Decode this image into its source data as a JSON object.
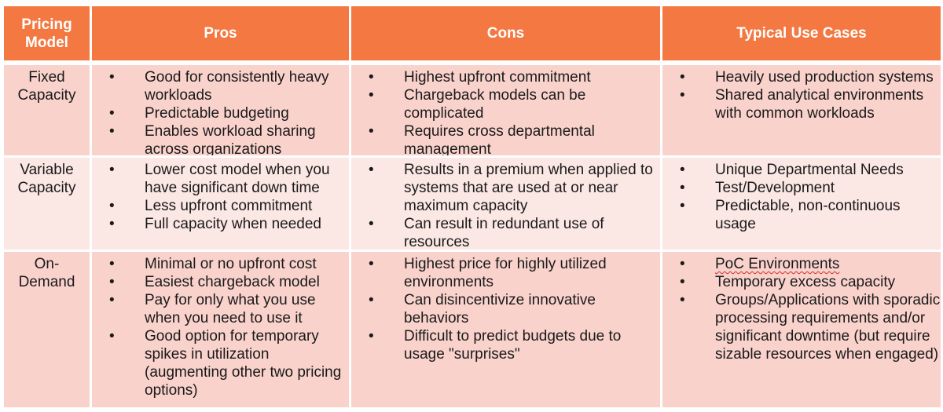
{
  "headers": [
    "Pricing Model",
    "Pros",
    "Cons",
    "Typical Use Cases"
  ],
  "rows": [
    {
      "model": "Fixed Capacity",
      "pros": [
        "Good for consistently heavy workloads",
        "Predictable budgeting",
        "Enables workload sharing across organizations"
      ],
      "cons": [
        "Highest upfront commitment",
        "Chargeback models can be complicated",
        "Requires cross departmental management"
      ],
      "use_cases": [
        "Heavily used production systems",
        "Shared analytical environments with common workloads"
      ]
    },
    {
      "model": "Variable Capacity",
      "pros": [
        "Lower cost model when you have significant down time",
        "Less upfront commitment",
        "Full capacity when needed"
      ],
      "cons": [
        "Results in a premium when applied to systems that are used at or near maximum capacity",
        "Can result in redundant use of resources"
      ],
      "use_cases": [
        "Unique Departmental Needs",
        "Test/Development",
        "Predictable, non-continuous usage"
      ]
    },
    {
      "model": "On-Demand",
      "pros": [
        "Minimal or no upfront cost",
        "Easiest chargeback model",
        "Pay for only what you use when you need to use it",
        "Good option for temporary spikes in utilization (augmenting other two pricing options)"
      ],
      "cons": [
        "Highest price for highly utilized environments",
        "Can disincentivize innovative behaviors",
        "Difficult to predict budgets due to usage \"surprises\""
      ],
      "use_cases": [
        "PoC Environments",
        "Temporary excess capacity",
        "Groups/Applications with sporadic processing requirements and/or significant downtime (but require sizable resources when engaged)"
      ]
    }
  ],
  "bullet_glyph": "•",
  "colors": {
    "header_bg": "#f37841",
    "row_dark": "#f9d2cc",
    "row_light": "#fbe7e4"
  }
}
